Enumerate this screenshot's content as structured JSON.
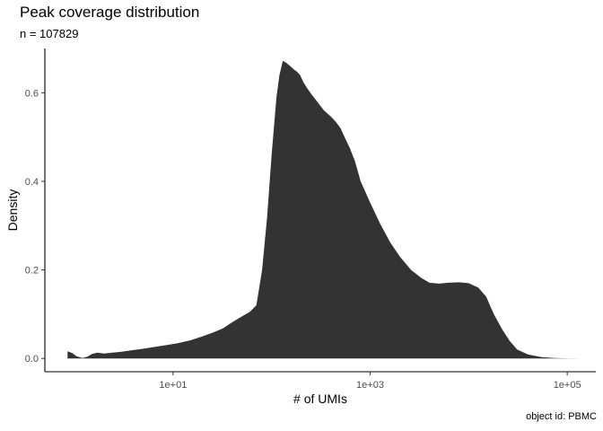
{
  "chart_data": {
    "type": "area",
    "title": "Peak coverage distribution",
    "subtitle": "n = 107829",
    "caption": "object id: PBMC",
    "xlabel": "# of UMIs",
    "ylabel": "Density",
    "x_scale": "log10",
    "xlim": [
      0.5,
      195000.0
    ],
    "ylim": [
      -0.03,
      0.7
    ],
    "x_ticks": [
      10,
      1000,
      100000
    ],
    "x_tick_labels": [
      "1e+01",
      "1e+03",
      "1e+05"
    ],
    "y_ticks": [
      0,
      0.2,
      0.4,
      0.6
    ],
    "y_tick_labels": [
      "0.0",
      "0.2",
      "0.4",
      "0.6"
    ],
    "grid": false,
    "fill_color": "#333333",
    "x": [
      0.85,
      0.95,
      1.05,
      1.2,
      1.35,
      1.5,
      1.7,
      2.0,
      2.4,
      3.0,
      4.0,
      5.0,
      6.5,
      8.5,
      11,
      15,
      20,
      25,
      32,
      40,
      50,
      60,
      70,
      80,
      90,
      100,
      112,
      120,
      130,
      140,
      155,
      170,
      180,
      195,
      210,
      230,
      255,
      290,
      340,
      400,
      450,
      500,
      550,
      620,
      700,
      800,
      1000,
      1250,
      1600,
      2000,
      2600,
      3300,
      4000,
      5000,
      6200,
      8000,
      10000,
      12500,
      15000,
      18000,
      22000,
      26000,
      31000,
      40000,
      55000,
      75000,
      100000,
      140000
    ],
    "y": [
      0.016,
      0.012,
      0.005,
      0.001,
      0.004,
      0.01,
      0.013,
      0.011,
      0.013,
      0.015,
      0.019,
      0.022,
      0.026,
      0.03,
      0.034,
      0.041,
      0.05,
      0.058,
      0.068,
      0.082,
      0.095,
      0.105,
      0.12,
      0.2,
      0.32,
      0.46,
      0.59,
      0.64,
      0.672,
      0.668,
      0.66,
      0.652,
      0.648,
      0.64,
      0.624,
      0.61,
      0.596,
      0.58,
      0.56,
      0.546,
      0.534,
      0.52,
      0.5,
      0.476,
      0.446,
      0.4,
      0.352,
      0.306,
      0.262,
      0.23,
      0.2,
      0.182,
      0.171,
      0.169,
      0.171,
      0.172,
      0.17,
      0.16,
      0.14,
      0.1,
      0.065,
      0.04,
      0.02,
      0.009,
      0.003,
      0.001,
      0.0003,
      0.0
    ]
  }
}
